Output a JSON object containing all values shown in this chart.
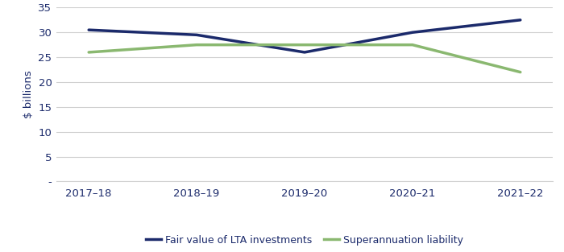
{
  "x_labels": [
    "2017–18",
    "2018–19",
    "2019–20",
    "2020–21",
    "2021–22"
  ],
  "lta_values": [
    30.5,
    29.5,
    26.0,
    30.0,
    32.5
  ],
  "super_values": [
    26.0,
    27.5,
    27.5,
    27.5,
    22.0
  ],
  "lta_color": "#1b2a6b",
  "super_color": "#8ab870",
  "lta_label": "Fair value of LTA investments",
  "super_label": "Superannuation liability",
  "ylabel": "$ billions",
  "ylim": [
    0,
    35
  ],
  "yticks": [
    0,
    5,
    10,
    15,
    20,
    25,
    30,
    35
  ],
  "ytick_labels": [
    "-",
    "5",
    "10",
    "15",
    "20",
    "25",
    "30",
    "35"
  ],
  "tick_label_color": "#1b2a6b",
  "background_color": "#ffffff",
  "grid_color": "#d0d0d0",
  "line_width": 2.5,
  "legend_fontsize": 9,
  "tick_fontsize": 9.5
}
